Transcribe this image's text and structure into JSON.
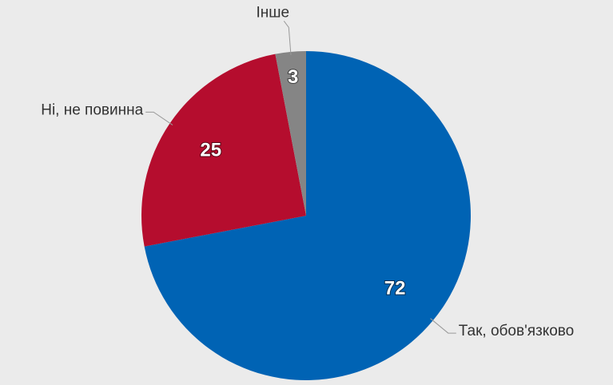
{
  "chart_data": {
    "type": "pie",
    "categories": [
      "Так, обов'язково",
      "Ні, не повинна",
      "Інше"
    ],
    "values": [
      72,
      25,
      3
    ],
    "colors": [
      "#0063b4",
      "#b50d2e",
      "#858585"
    ]
  }
}
